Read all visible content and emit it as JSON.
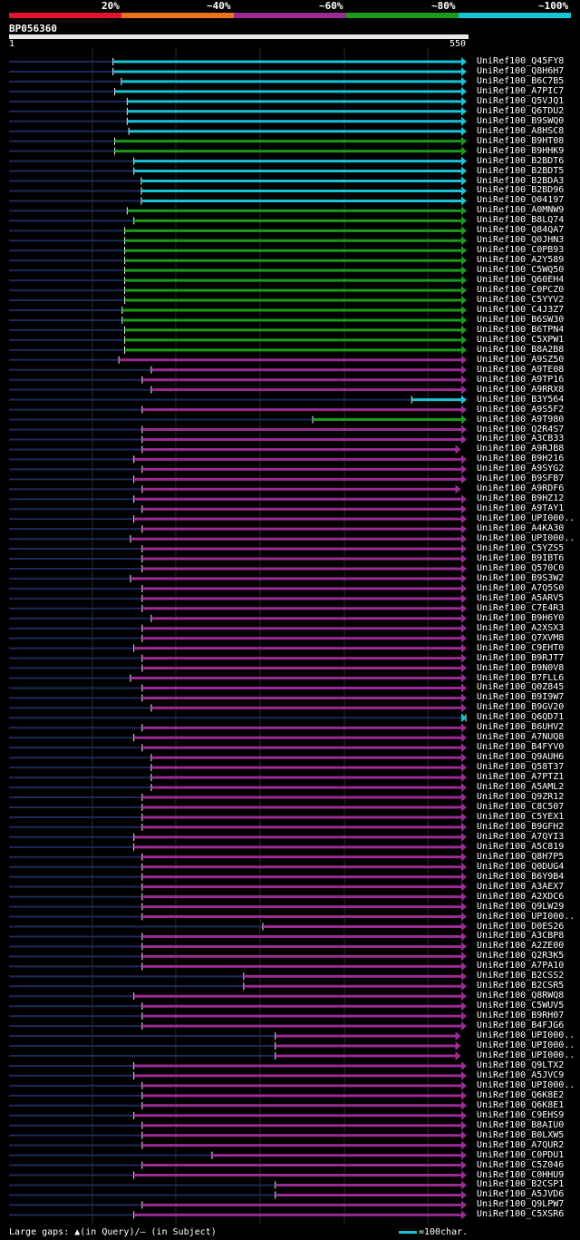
{
  "legend": {
    "items": [
      {
        "label": "20%",
        "color": "#e0152b"
      },
      {
        "label": "~40%",
        "color": "#e8731a"
      },
      {
        "label": "~60%",
        "color": "#9b2a93"
      },
      {
        "label": "~80%",
        "color": "#1a9c1a"
      },
      {
        "label": "~100%",
        "color": "#17c3d4"
      }
    ]
  },
  "query": {
    "name": "BP056360",
    "start": "1",
    "end": "550",
    "length": 550
  },
  "footer": {
    "gaps_text": "Large gaps: ▲(in Query)/– (in Subject)",
    "scale_text": "=100char."
  },
  "chart_data": {
    "type": "alignment",
    "x_range": [
      1,
      550
    ],
    "hits": [
      {
        "name": "UniRef100_Q45FY8",
        "color": "cyan",
        "start": 126,
        "end": 550
      },
      {
        "name": "UniRef100_Q8H6H7",
        "color": "cyan",
        "start": 126,
        "end": 550
      },
      {
        "name": "UniRef100_B6C7B5",
        "color": "cyan",
        "start": 136,
        "end": 550
      },
      {
        "name": "UniRef100_A7PIC7",
        "color": "cyan",
        "start": 128,
        "end": 550
      },
      {
        "name": "UniRef100_Q5VJQ1",
        "color": "cyan",
        "start": 143,
        "end": 550
      },
      {
        "name": "UniRef100_Q6TDU2",
        "color": "cyan",
        "start": 143,
        "end": 550
      },
      {
        "name": "UniRef100_B9SWQ0",
        "color": "cyan",
        "start": 143,
        "end": 550
      },
      {
        "name": "UniRef100_A8HSC8",
        "color": "cyan",
        "start": 145,
        "end": 550
      },
      {
        "name": "UniRef100_B9HT08",
        "color": "green",
        "start": 128,
        "end": 550
      },
      {
        "name": "UniRef100_B9HHK9",
        "color": "green",
        "start": 128,
        "end": 550
      },
      {
        "name": "UniRef100_B2BDT6",
        "color": "cyan",
        "start": 151,
        "end": 550
      },
      {
        "name": "UniRef100_B2BDT5",
        "color": "cyan",
        "start": 151,
        "end": 550
      },
      {
        "name": "UniRef100_B2BDA3",
        "color": "cyan",
        "start": 160,
        "end": 550
      },
      {
        "name": "UniRef100_B2BD96",
        "color": "cyan",
        "start": 160,
        "end": 550
      },
      {
        "name": "UniRef100_O04197",
        "color": "cyan",
        "start": 160,
        "end": 550
      },
      {
        "name": "UniRef100_A0MNW9",
        "color": "green",
        "start": 143,
        "end": 550
      },
      {
        "name": "UniRef100_B8LQ74",
        "color": "green",
        "start": 151,
        "end": 550
      },
      {
        "name": "UniRef100_Q84QA7",
        "color": "green",
        "start": 140,
        "end": 550
      },
      {
        "name": "UniRef100_Q0JHN3",
        "color": "green",
        "start": 140,
        "end": 550
      },
      {
        "name": "UniRef100_C0PB93",
        "color": "green",
        "start": 140,
        "end": 550
      },
      {
        "name": "UniRef100_A2Y589",
        "color": "green",
        "start": 140,
        "end": 550
      },
      {
        "name": "UniRef100_C5WQ50",
        "color": "green",
        "start": 140,
        "end": 550
      },
      {
        "name": "UniRef100_Q60EH4",
        "color": "green",
        "start": 140,
        "end": 550
      },
      {
        "name": "UniRef100_C0PCZ0",
        "color": "green",
        "start": 140,
        "end": 550
      },
      {
        "name": "UniRef100_C5YYV2",
        "color": "green",
        "start": 140,
        "end": 550
      },
      {
        "name": "UniRef100_C4J3Z7",
        "color": "green",
        "start": 137,
        "end": 550
      },
      {
        "name": "UniRef100_B6SW30",
        "color": "green",
        "start": 137,
        "end": 550
      },
      {
        "name": "UniRef100_B6TPN4",
        "color": "green",
        "start": 140,
        "end": 550
      },
      {
        "name": "UniRef100_C5XPW1",
        "color": "green",
        "start": 140,
        "end": 550
      },
      {
        "name": "UniRef100_B8A2B8",
        "color": "green",
        "start": 140,
        "end": 550
      },
      {
        "name": "UniRef100_A9SZ50",
        "color": "purple",
        "start": 133,
        "end": 550
      },
      {
        "name": "UniRef100_A9TE08",
        "color": "purple",
        "start": 172,
        "end": 550
      },
      {
        "name": "UniRef100_A9TP16",
        "color": "purple",
        "start": 161,
        "end": 550
      },
      {
        "name": "UniRef100_A9RRX8",
        "color": "purple",
        "start": 172,
        "end": 550
      },
      {
        "name": "UniRef100_B3Y564",
        "color": "cyan",
        "start": 485,
        "end": 550
      },
      {
        "name": "UniRef100_A9S5F2",
        "color": "purple",
        "start": 161,
        "end": 550
      },
      {
        "name": "UniRef100_A9T980",
        "color": "green",
        "start": 366,
        "end": 550
      },
      {
        "name": "UniRef100_Q2R4S7",
        "color": "purple",
        "start": 161,
        "end": 550
      },
      {
        "name": "UniRef100_A3CB33",
        "color": "purple",
        "start": 161,
        "end": 550
      },
      {
        "name": "UniRef100_A9RJB8",
        "color": "purple",
        "start": 161,
        "end": 543
      },
      {
        "name": "UniRef100_B9H216",
        "color": "purple",
        "start": 151,
        "end": 550
      },
      {
        "name": "UniRef100_A9SYG2",
        "color": "purple",
        "start": 161,
        "end": 550
      },
      {
        "name": "UniRef100_B9SFB7",
        "color": "purple",
        "start": 151,
        "end": 550
      },
      {
        "name": "UniRef100_A9RDF6",
        "color": "purple",
        "start": 161,
        "end": 543
      },
      {
        "name": "UniRef100_B9HZ12",
        "color": "purple",
        "start": 151,
        "end": 550
      },
      {
        "name": "UniRef100_A9TAY1",
        "color": "purple",
        "start": 161,
        "end": 550
      },
      {
        "name": "UniRef100_UPI000..",
        "color": "purple",
        "start": 151,
        "end": 550
      },
      {
        "name": "UniRef100_A4KA30",
        "color": "purple",
        "start": 161,
        "end": 550
      },
      {
        "name": "UniRef100_UPI000..",
        "color": "purple",
        "start": 147,
        "end": 550
      },
      {
        "name": "UniRef100_C5YZS5",
        "color": "purple",
        "start": 161,
        "end": 550
      },
      {
        "name": "UniRef100_B9IBT6",
        "color": "purple",
        "start": 161,
        "end": 550
      },
      {
        "name": "UniRef100_Q570C0",
        "color": "purple",
        "start": 161,
        "end": 550
      },
      {
        "name": "UniRef100_B9S3W2",
        "color": "purple",
        "start": 147,
        "end": 550
      },
      {
        "name": "UniRef100_A7Q5S0",
        "color": "purple",
        "start": 161,
        "end": 550
      },
      {
        "name": "UniRef100_A5ARV5",
        "color": "purple",
        "start": 161,
        "end": 550
      },
      {
        "name": "UniRef100_C7E4R3",
        "color": "purple",
        "start": 161,
        "end": 550
      },
      {
        "name": "UniRef100_B9H6Y0",
        "color": "purple",
        "start": 172,
        "end": 550
      },
      {
        "name": "UniRef100_A2XSX3",
        "color": "purple",
        "start": 161,
        "end": 550
      },
      {
        "name": "UniRef100_Q7XVM8",
        "color": "purple",
        "start": 161,
        "end": 550
      },
      {
        "name": "UniRef100_C9EHT0",
        "color": "purple",
        "start": 151,
        "end": 550
      },
      {
        "name": "UniRef100_B9RJT7",
        "color": "purple",
        "start": 161,
        "end": 550
      },
      {
        "name": "UniRef100_B9N0V8",
        "color": "purple",
        "start": 161,
        "end": 550
      },
      {
        "name": "UniRef100_B7FLL6",
        "color": "purple",
        "start": 147,
        "end": 550
      },
      {
        "name": "UniRef100_Q0Z845",
        "color": "purple",
        "start": 161,
        "end": 550
      },
      {
        "name": "UniRef100_B9I9W7",
        "color": "purple",
        "start": 161,
        "end": 550
      },
      {
        "name": "UniRef100_B9GV20",
        "color": "purple",
        "start": 172,
        "end": 550
      },
      {
        "name": "UniRef100_Q6QD71",
        "color": "cyan",
        "start": 553,
        "end": 550
      },
      {
        "name": "UniRef100_B6UHV2",
        "color": "purple",
        "start": 161,
        "end": 550
      },
      {
        "name": "UniRef100_A7NUQ8",
        "color": "purple",
        "start": 151,
        "end": 550
      },
      {
        "name": "UniRef100_B4FYV0",
        "color": "purple",
        "start": 161,
        "end": 550
      },
      {
        "name": "UniRef100_Q9AUH6",
        "color": "purple",
        "start": 172,
        "end": 550
      },
      {
        "name": "UniRef100_Q58T37",
        "color": "purple",
        "start": 172,
        "end": 550
      },
      {
        "name": "UniRef100_A7PTZ1",
        "color": "purple",
        "start": 172,
        "end": 550
      },
      {
        "name": "UniRef100_A5AML2",
        "color": "purple",
        "start": 172,
        "end": 550
      },
      {
        "name": "UniRef100_Q9ZR12",
        "color": "purple",
        "start": 161,
        "end": 550
      },
      {
        "name": "UniRef100_C8C507",
        "color": "purple",
        "start": 161,
        "end": 550
      },
      {
        "name": "UniRef100_C5YEX1",
        "color": "purple",
        "start": 161,
        "end": 550
      },
      {
        "name": "UniRef100_B9GFH2",
        "color": "purple",
        "start": 161,
        "end": 550
      },
      {
        "name": "UniRef100_A7QYI3",
        "color": "purple",
        "start": 151,
        "end": 550
      },
      {
        "name": "UniRef100_A5C819",
        "color": "purple",
        "start": 151,
        "end": 550
      },
      {
        "name": "UniRef100_Q8H7P5",
        "color": "purple",
        "start": 161,
        "end": 550
      },
      {
        "name": "UniRef100_Q0DUG4",
        "color": "purple",
        "start": 161,
        "end": 550
      },
      {
        "name": "UniRef100_B6Y9B4",
        "color": "purple",
        "start": 161,
        "end": 550
      },
      {
        "name": "UniRef100_A3AEX7",
        "color": "purple",
        "start": 161,
        "end": 550
      },
      {
        "name": "UniRef100_A2XDC6",
        "color": "purple",
        "start": 161,
        "end": 550
      },
      {
        "name": "UniRef100_Q9LW29",
        "color": "purple",
        "start": 161,
        "end": 550
      },
      {
        "name": "UniRef100_UPI000..",
        "color": "purple",
        "start": 161,
        "end": 550
      },
      {
        "name": "UniRef100_D0ES26",
        "color": "purple",
        "start": 306,
        "end": 550
      },
      {
        "name": "UniRef100_A3CBP8",
        "color": "purple",
        "start": 161,
        "end": 550
      },
      {
        "name": "UniRef100_A2ZE00",
        "color": "purple",
        "start": 161,
        "end": 550
      },
      {
        "name": "UniRef100_Q2R3K5",
        "color": "purple",
        "start": 161,
        "end": 550
      },
      {
        "name": "UniRef100_A7PA10",
        "color": "purple",
        "start": 161,
        "end": 550
      },
      {
        "name": "UniRef100_B2CSS2",
        "color": "purple",
        "start": 283,
        "end": 550
      },
      {
        "name": "UniRef100_B2CSR5",
        "color": "purple",
        "start": 283,
        "end": 550
      },
      {
        "name": "UniRef100_Q8RWQ8",
        "color": "purple",
        "start": 151,
        "end": 550
      },
      {
        "name": "UniRef100_C5WUV5",
        "color": "purple",
        "start": 161,
        "end": 550
      },
      {
        "name": "UniRef100_B9RH07",
        "color": "purple",
        "start": 161,
        "end": 550
      },
      {
        "name": "UniRef100_B4FJG6",
        "color": "purple",
        "start": 161,
        "end": 550
      },
      {
        "name": "UniRef100_UPI000..",
        "color": "purple",
        "start": 321,
        "end": 543
      },
      {
        "name": "UniRef100_UPI000..",
        "color": "purple",
        "start": 321,
        "end": 543
      },
      {
        "name": "UniRef100_UPI000..",
        "color": "purple",
        "start": 321,
        "end": 543
      },
      {
        "name": "UniRef100_Q9LTX2",
        "color": "purple",
        "start": 151,
        "end": 550
      },
      {
        "name": "UniRef100_A5JVC9",
        "color": "purple",
        "start": 151,
        "end": 550
      },
      {
        "name": "UniRef100_UPI000..",
        "color": "purple",
        "start": 161,
        "end": 550
      },
      {
        "name": "UniRef100_Q6K8E2",
        "color": "purple",
        "start": 161,
        "end": 550
      },
      {
        "name": "UniRef100_Q6K8E1",
        "color": "purple",
        "start": 161,
        "end": 550
      },
      {
        "name": "UniRef100_C9EHS9",
        "color": "purple",
        "start": 151,
        "end": 550
      },
      {
        "name": "UniRef100_B8AIU0",
        "color": "purple",
        "start": 161,
        "end": 550
      },
      {
        "name": "UniRef100_B0LXW5",
        "color": "purple",
        "start": 161,
        "end": 550
      },
      {
        "name": "UniRef100_A7QUR2",
        "color": "purple",
        "start": 161,
        "end": 550
      },
      {
        "name": "UniRef100_C0PDU1",
        "color": "purple",
        "start": 245,
        "end": 550
      },
      {
        "name": "UniRef100_C5Z046",
        "color": "purple",
        "start": 161,
        "end": 550
      },
      {
        "name": "UniRef100_C0HHU9",
        "color": "purple",
        "start": 151,
        "end": 550
      },
      {
        "name": "UniRef100_B2CSP1",
        "color": "purple",
        "start": 321,
        "end": 550
      },
      {
        "name": "UniRef100_A5JVD6",
        "color": "purple",
        "start": 321,
        "end": 550
      },
      {
        "name": "UniRef100_Q9LPW7",
        "color": "purple",
        "start": 161,
        "end": 550
      },
      {
        "name": "UniRef100_C5XSR6",
        "color": "purple",
        "start": 151,
        "end": 550
      }
    ]
  }
}
